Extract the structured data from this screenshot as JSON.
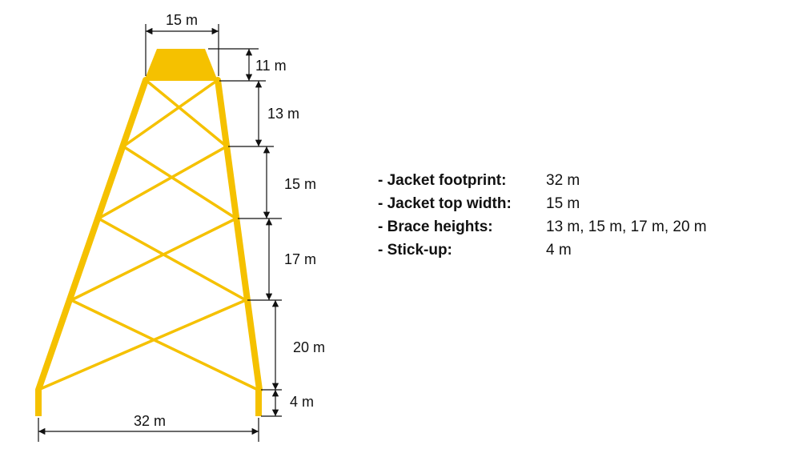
{
  "colors": {
    "structure": "#f5c100",
    "dimension_line": "#111111",
    "background": "#ffffff"
  },
  "dimensions": {
    "top_width": "15 m",
    "cap_height": "11 m",
    "brace_1": "13 m",
    "brace_2": "15 m",
    "brace_3": "17 m",
    "brace_4": "20 m",
    "stick_up": "4 m",
    "footprint": "32 m"
  },
  "specs": [
    {
      "label": "- Jacket footprint:",
      "value": "32 m"
    },
    {
      "label": "- Jacket top width:",
      "value": "15 m"
    },
    {
      "label": "- Brace heights:",
      "value": "13 m, 15 m, 17 m, 20 m"
    },
    {
      "label": "- Stick-up:",
      "value": "4 m"
    }
  ]
}
